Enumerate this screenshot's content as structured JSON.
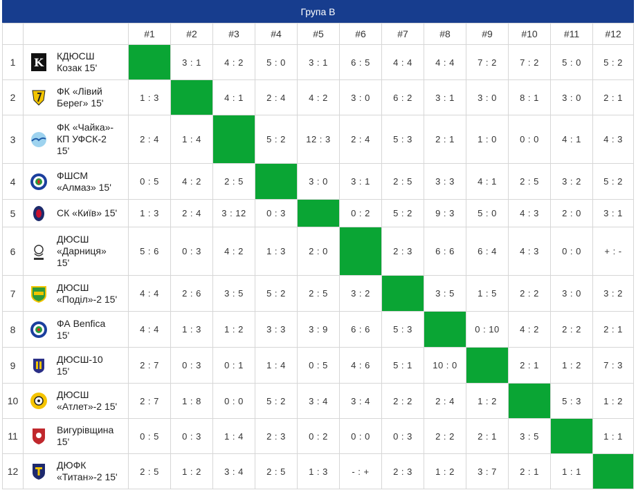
{
  "title": "Група В",
  "col_headers": [
    "#1",
    "#2",
    "#3",
    "#4",
    "#5",
    "#6",
    "#7",
    "#8",
    "#9",
    "#10",
    "#11",
    "#12"
  ],
  "teams": [
    {
      "num": "1",
      "name_lines": [
        "КДЮСШ",
        "Козак 15'"
      ],
      "logo": "kozak-logo",
      "scores": [
        "",
        "3 : 1",
        "4 : 2",
        "5 : 0",
        "3 : 1",
        "6 : 5",
        "4 : 4",
        "4 : 4",
        "7 : 2",
        "7 : 2",
        "5 : 0",
        "5 : 2"
      ]
    },
    {
      "num": "2",
      "name_lines": [
        "ФК «Лівий",
        "Берег» 15'"
      ],
      "logo": "livyi-bereh-logo",
      "scores": [
        "1 : 3",
        "",
        "4 : 1",
        "2 : 4",
        "4 : 2",
        "3 : 0",
        "6 : 2",
        "3 : 1",
        "3 : 0",
        "8 : 1",
        "3 : 0",
        "2 : 1"
      ]
    },
    {
      "num": "3",
      "name_lines": [
        "ФК «Чайка»-",
        "КП УФСК-2",
        "15'"
      ],
      "logo": "chaika-logo",
      "scores": [
        "2 : 4",
        "1 : 4",
        "",
        "5 : 2",
        "12 : 3",
        "2 : 4",
        "5 : 3",
        "2 : 1",
        "1 : 0",
        "0 : 0",
        "4 : 1",
        "4 : 3"
      ]
    },
    {
      "num": "4",
      "name_lines": [
        "ФШСМ",
        "«Алмаз» 15'"
      ],
      "logo": "almaz-logo",
      "scores": [
        "0 : 5",
        "4 : 2",
        "2 : 5",
        "",
        "3 : 0",
        "3 : 1",
        "2 : 5",
        "3 : 3",
        "4 : 1",
        "2 : 5",
        "3 : 2",
        "5 : 2"
      ]
    },
    {
      "num": "5",
      "name_lines": [
        "СК «Київ» 15'"
      ],
      "logo": "kyiv-logo",
      "scores": [
        "1 : 3",
        "2 : 4",
        "3 : 12",
        "0 : 3",
        "",
        "0 : 2",
        "5 : 2",
        "9 : 3",
        "5 : 0",
        "4 : 3",
        "2 : 0",
        "3 : 1"
      ]
    },
    {
      "num": "6",
      "name_lines": [
        "ДЮСШ",
        "«Дарниця»",
        "15'"
      ],
      "logo": "darnytsia-logo",
      "scores": [
        "5 : 6",
        "0 : 3",
        "4 : 2",
        "1 : 3",
        "2 : 0",
        "",
        "2 : 3",
        "6 : 6",
        "6 : 4",
        "4 : 3",
        "0 : 0",
        "+ : -"
      ]
    },
    {
      "num": "7",
      "name_lines": [
        "ДЮСШ",
        "«Поділ»-2 15'"
      ],
      "logo": "podil-logo",
      "scores": [
        "4 : 4",
        "2 : 6",
        "3 : 5",
        "5 : 2",
        "2 : 5",
        "3 : 2",
        "",
        "3 : 5",
        "1 : 5",
        "2 : 2",
        "3 : 0",
        "3 : 2"
      ]
    },
    {
      "num": "8",
      "name_lines": [
        "ФА Benfica",
        "15'"
      ],
      "logo": "benfica-logo",
      "scores": [
        "4 : 4",
        "1 : 3",
        "1 : 2",
        "3 : 3",
        "3 : 9",
        "6 : 6",
        "5 : 3",
        "",
        "0 : 10",
        "4 : 2",
        "2 : 2",
        "2 : 1"
      ]
    },
    {
      "num": "9",
      "name_lines": [
        "ДЮСШ-10",
        "15'"
      ],
      "logo": "dyussh10-logo",
      "scores": [
        "2 : 7",
        "0 : 3",
        "0 : 1",
        "1 : 4",
        "0 : 5",
        "4 : 6",
        "5 : 1",
        "10 : 0",
        "",
        "2 : 1",
        "1 : 2",
        "7 : 3"
      ]
    },
    {
      "num": "10",
      "name_lines": [
        "ДЮСШ",
        "«Атлет»-2 15'"
      ],
      "logo": "atlet-logo",
      "scores": [
        "2 : 7",
        "1 : 8",
        "0 : 0",
        "5 : 2",
        "3 : 4",
        "3 : 4",
        "2 : 2",
        "2 : 4",
        "1 : 2",
        "",
        "5 : 3",
        "1 : 2"
      ]
    },
    {
      "num": "11",
      "name_lines": [
        "Вигурівщина",
        "15'"
      ],
      "logo": "vyhurivshchyna-logo",
      "scores": [
        "0 : 5",
        "0 : 3",
        "1 : 4",
        "2 : 3",
        "0 : 2",
        "0 : 0",
        "0 : 3",
        "2 : 2",
        "2 : 1",
        "3 : 5",
        "",
        "1 : 1"
      ]
    },
    {
      "num": "12",
      "name_lines": [
        "ДЮФК",
        "«Титан»-2 15'"
      ],
      "logo": "tytan-logo",
      "scores": [
        "2 : 5",
        "1 : 2",
        "3 : 4",
        "2 : 5",
        "1 : 3",
        "- : +",
        "2 : 3",
        "1 : 2",
        "3 : 7",
        "2 : 1",
        "1 : 1",
        ""
      ]
    }
  ],
  "colors": {
    "header_bg": "#173d8e",
    "diagonal": "#0aa534"
  }
}
